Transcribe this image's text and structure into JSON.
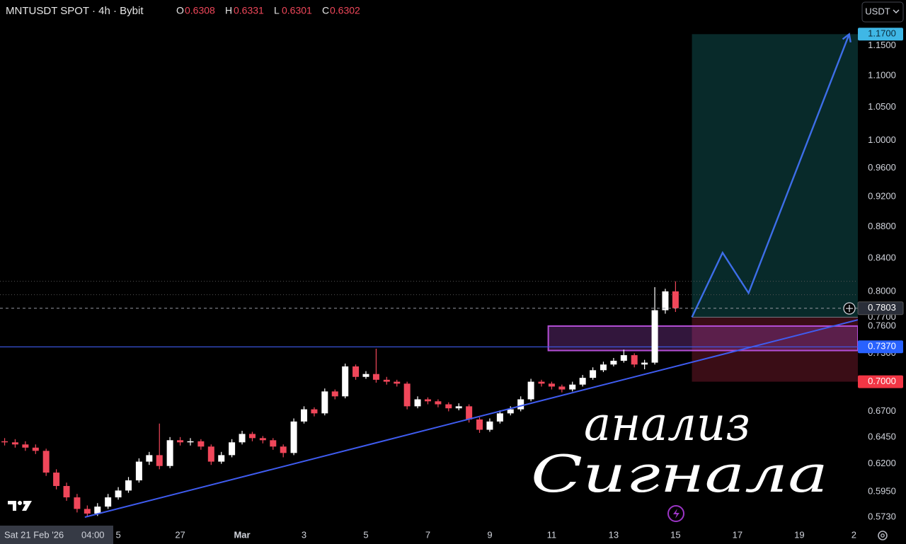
{
  "chart_data": {
    "type": "candlestick",
    "title": "MNTUSDT SPOT · 4h · Bybit",
    "legend_ohlc": [
      {
        "key": "O",
        "value": 0.6308
      },
      {
        "key": "H",
        "value": 0.6331
      },
      {
        "key": "L",
        "value": 0.6301
      },
      {
        "key": "C",
        "value": 0.6302
      }
    ],
    "currency": "USDT",
    "crosshair_date": "Sat 21 Feb '26",
    "crosshair_time": "04:00",
    "log_scale": true,
    "grid": false,
    "up_color": "#ffffff",
    "down_color": "#f0475a",
    "xlim": [
      52.18,
      79.89
    ],
    "ylim": [
      0.5507,
      1.2306
    ],
    "xticks": [
      {
        "value": 56,
        "label": "5"
      },
      {
        "value": 58,
        "label": "27"
      },
      {
        "value": 60,
        "label": "Mar"
      },
      {
        "value": 62,
        "label": "3"
      },
      {
        "value": 64,
        "label": "5"
      },
      {
        "value": 66,
        "label": "7"
      },
      {
        "value": 68,
        "label": "9"
      },
      {
        "value": 70,
        "label": "11"
      },
      {
        "value": 72,
        "label": "13"
      },
      {
        "value": 74,
        "label": "15"
      },
      {
        "value": 76,
        "label": "17"
      },
      {
        "value": 78,
        "label": "19"
      },
      {
        "value": 80,
        "label": "2"
      }
    ],
    "yticks": [
      {
        "value": 0.573,
        "label": "0.5730"
      },
      {
        "value": 0.595,
        "label": "0.5950"
      },
      {
        "value": 0.62,
        "label": "0.6200"
      },
      {
        "value": 0.645,
        "label": "0.6450"
      },
      {
        "value": 0.67,
        "label": "0.6700"
      },
      {
        "value": 0.73,
        "label": "0.7300"
      },
      {
        "value": 0.76,
        "label": "0.7600"
      },
      {
        "value": 0.77,
        "label": "0.7700"
      },
      {
        "value": 0.8,
        "label": "0.8000"
      },
      {
        "value": 0.84,
        "label": "0.8400"
      },
      {
        "value": 0.88,
        "label": "0.8800"
      },
      {
        "value": 0.92,
        "label": "0.9200"
      },
      {
        "value": 0.96,
        "label": "0.9600"
      },
      {
        "value": 1,
        "label": "1.0000"
      },
      {
        "value": 1.05,
        "label": "1.0500"
      },
      {
        "value": 1.1,
        "label": "1.1000"
      },
      {
        "value": 1.15,
        "label": "1.1500"
      }
    ],
    "x": [
      52.33,
      52.67,
      53.0,
      53.33,
      53.67,
      54.0,
      54.33,
      54.67,
      55.0,
      55.33,
      55.67,
      56.0,
      56.33,
      56.67,
      57.0,
      57.33,
      57.67,
      58.0,
      58.33,
      58.67,
      59.0,
      59.33,
      59.67,
      60.0,
      60.33,
      60.67,
      61.0,
      61.33,
      61.67,
      62.0,
      62.33,
      62.67,
      63.0,
      63.33,
      63.67,
      64.0,
      64.33,
      64.67,
      65.0,
      65.33,
      65.67,
      66.0,
      66.33,
      66.67,
      67.0,
      67.33,
      67.67,
      68.0,
      68.33,
      68.67,
      69.0,
      69.33,
      69.67,
      70.0,
      70.33,
      70.67,
      71.0,
      71.33,
      71.67,
      72.0,
      72.33,
      72.67,
      73.0,
      73.33,
      73.67,
      74.0
    ],
    "open": [
      0.641,
      0.64,
      0.638,
      0.635,
      0.632,
      0.612,
      0.6,
      0.59,
      0.58,
      0.576,
      0.582,
      0.59,
      0.596,
      0.605,
      0.622,
      0.628,
      0.618,
      0.642,
      0.64,
      0.641,
      0.636,
      0.622,
      0.628,
      0.64,
      0.648,
      0.644,
      0.642,
      0.636,
      0.63,
      0.66,
      0.672,
      0.668,
      0.69,
      0.685,
      0.716,
      0.705,
      0.708,
      0.702,
      0.7,
      0.698,
      0.675,
      0.682,
      0.68,
      0.677,
      0.673,
      0.675,
      0.662,
      0.652,
      0.66,
      0.668,
      0.672,
      0.682,
      0.7,
      0.698,
      0.695,
      0.692,
      0.697,
      0.704,
      0.712,
      0.718,
      0.722,
      0.728,
      0.718,
      0.72,
      0.778,
      0.8
    ],
    "high": [
      0.644,
      0.643,
      0.641,
      0.638,
      0.634,
      0.615,
      0.603,
      0.593,
      0.583,
      0.585,
      0.593,
      0.599,
      0.608,
      0.625,
      0.631,
      0.658,
      0.645,
      0.645,
      0.644,
      0.643,
      0.638,
      0.631,
      0.643,
      0.651,
      0.65,
      0.646,
      0.644,
      0.638,
      0.663,
      0.675,
      0.674,
      0.693,
      0.692,
      0.719,
      0.718,
      0.711,
      0.735,
      0.705,
      0.702,
      0.7,
      0.685,
      0.684,
      0.682,
      0.679,
      0.678,
      0.677,
      0.664,
      0.663,
      0.671,
      0.675,
      0.685,
      0.703,
      0.702,
      0.7,
      0.697,
      0.7,
      0.707,
      0.715,
      0.721,
      0.725,
      0.734,
      0.73,
      0.723,
      0.805,
      0.803,
      0.812
    ],
    "low": [
      0.637,
      0.635,
      0.632,
      0.629,
      0.609,
      0.597,
      0.587,
      0.577,
      0.573,
      0.574,
      0.58,
      0.588,
      0.594,
      0.603,
      0.619,
      0.615,
      0.616,
      0.637,
      0.637,
      0.633,
      0.619,
      0.62,
      0.626,
      0.638,
      0.641,
      0.639,
      0.633,
      0.626,
      0.628,
      0.658,
      0.665,
      0.666,
      0.682,
      0.683,
      0.702,
      0.703,
      0.699,
      0.697,
      0.695,
      0.672,
      0.673,
      0.677,
      0.674,
      0.67,
      0.671,
      0.659,
      0.649,
      0.65,
      0.658,
      0.666,
      0.67,
      0.68,
      0.695,
      0.692,
      0.689,
      0.69,
      0.695,
      0.702,
      0.71,
      0.716,
      0.72,
      0.715,
      0.713,
      0.718,
      0.774,
      0.776
    ],
    "close": [
      0.64,
      0.638,
      0.635,
      0.632,
      0.612,
      0.6,
      0.59,
      0.58,
      0.576,
      0.582,
      0.59,
      0.596,
      0.605,
      0.622,
      0.628,
      0.618,
      0.642,
      0.64,
      0.641,
      0.636,
      0.622,
      0.628,
      0.64,
      0.648,
      0.644,
      0.642,
      0.636,
      0.63,
      0.66,
      0.672,
      0.668,
      0.69,
      0.685,
      0.716,
      0.705,
      0.708,
      0.702,
      0.7,
      0.698,
      0.675,
      0.682,
      0.68,
      0.677,
      0.673,
      0.675,
      0.662,
      0.652,
      0.66,
      0.668,
      0.672,
      0.682,
      0.7,
      0.698,
      0.695,
      0.692,
      0.697,
      0.704,
      0.712,
      0.718,
      0.722,
      0.728,
      0.718,
      0.72,
      0.778,
      0.8,
      0.7803
    ],
    "trendline": {
      "color": "#3f5cf0",
      "x": [
        54.92,
        79.89
      ],
      "y": [
        0.573,
        0.767
      ]
    },
    "hline": {
      "color": "#3f5cf0",
      "value": 0.737
    },
    "zone": {
      "color": "#b44fd6",
      "x": [
        69.89,
        79.89
      ],
      "y": [
        0.733,
        0.76
      ]
    },
    "position": {
      "x": [
        74.53,
        79.89
      ],
      "entry": 0.77,
      "target": 1.17,
      "stop": 0.7
    },
    "path": {
      "color": "#3d6ee8",
      "x": [
        74.53,
        75.52,
        76.36,
        79.61
      ],
      "y": [
        0.77,
        0.847,
        0.798,
        1.17
      ]
    },
    "dotted_lines": [
      0.812,
      0.796
    ],
    "price_labels": [
      {
        "value": 1.17,
        "label": "1.1700",
        "color": "#3fb7e6"
      },
      {
        "value": 0.7803,
        "label": "0.7803",
        "color": "#2a2e39"
      },
      {
        "value": 0.737,
        "label": "0.7370",
        "color": "#2962ff"
      },
      {
        "value": 0.7,
        "label": "0.7000",
        "color": "#f23645"
      }
    ],
    "annotation_text": [
      "анализ",
      "Сигнала"
    ]
  }
}
